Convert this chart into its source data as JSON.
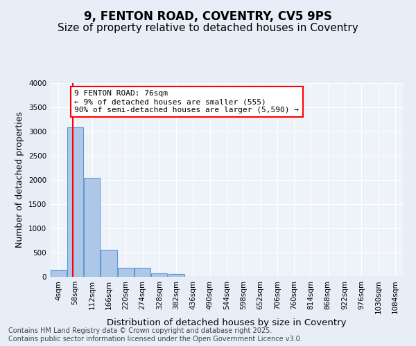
{
  "title_line1": "9, FENTON ROAD, COVENTRY, CV5 9PS",
  "title_line2": "Size of property relative to detached houses in Coventry",
  "xlabel": "Distribution of detached houses by size in Coventry",
  "ylabel": "Number of detached properties",
  "bins": [
    "4sqm",
    "58sqm",
    "112sqm",
    "166sqm",
    "220sqm",
    "274sqm",
    "328sqm",
    "382sqm",
    "436sqm",
    "490sqm",
    "544sqm",
    "598sqm",
    "652sqm",
    "706sqm",
    "760sqm",
    "814sqm",
    "868sqm",
    "922sqm",
    "976sqm",
    "1030sqm",
    "1084sqm"
  ],
  "values": [
    150,
    3080,
    2050,
    555,
    190,
    190,
    75,
    55,
    0,
    0,
    0,
    0,
    0,
    0,
    0,
    0,
    0,
    0,
    0,
    0,
    0
  ],
  "bar_color": "#aec6e8",
  "bar_edge_color": "#5b9bd5",
  "property_size_sqm": 76,
  "annotation_text": "9 FENTON ROAD: 76sqm\n← 9% of detached houses are smaller (555)\n90% of semi-detached houses are larger (5,590) →",
  "ylim": [
    0,
    4000
  ],
  "yticks": [
    0,
    500,
    1000,
    1500,
    2000,
    2500,
    3000,
    3500,
    4000
  ],
  "background_color": "#e8eef7",
  "plot_bg_color": "#eef2f9",
  "footer_text": "Contains HM Land Registry data © Crown copyright and database right 2025.\nContains public sector information licensed under the Open Government Licence v3.0.",
  "title_fontsize": 12,
  "subtitle_fontsize": 11,
  "axis_label_fontsize": 9,
  "tick_fontsize": 7.5,
  "annotation_fontsize": 8,
  "footer_fontsize": 7,
  "red_line_x": 0.85
}
